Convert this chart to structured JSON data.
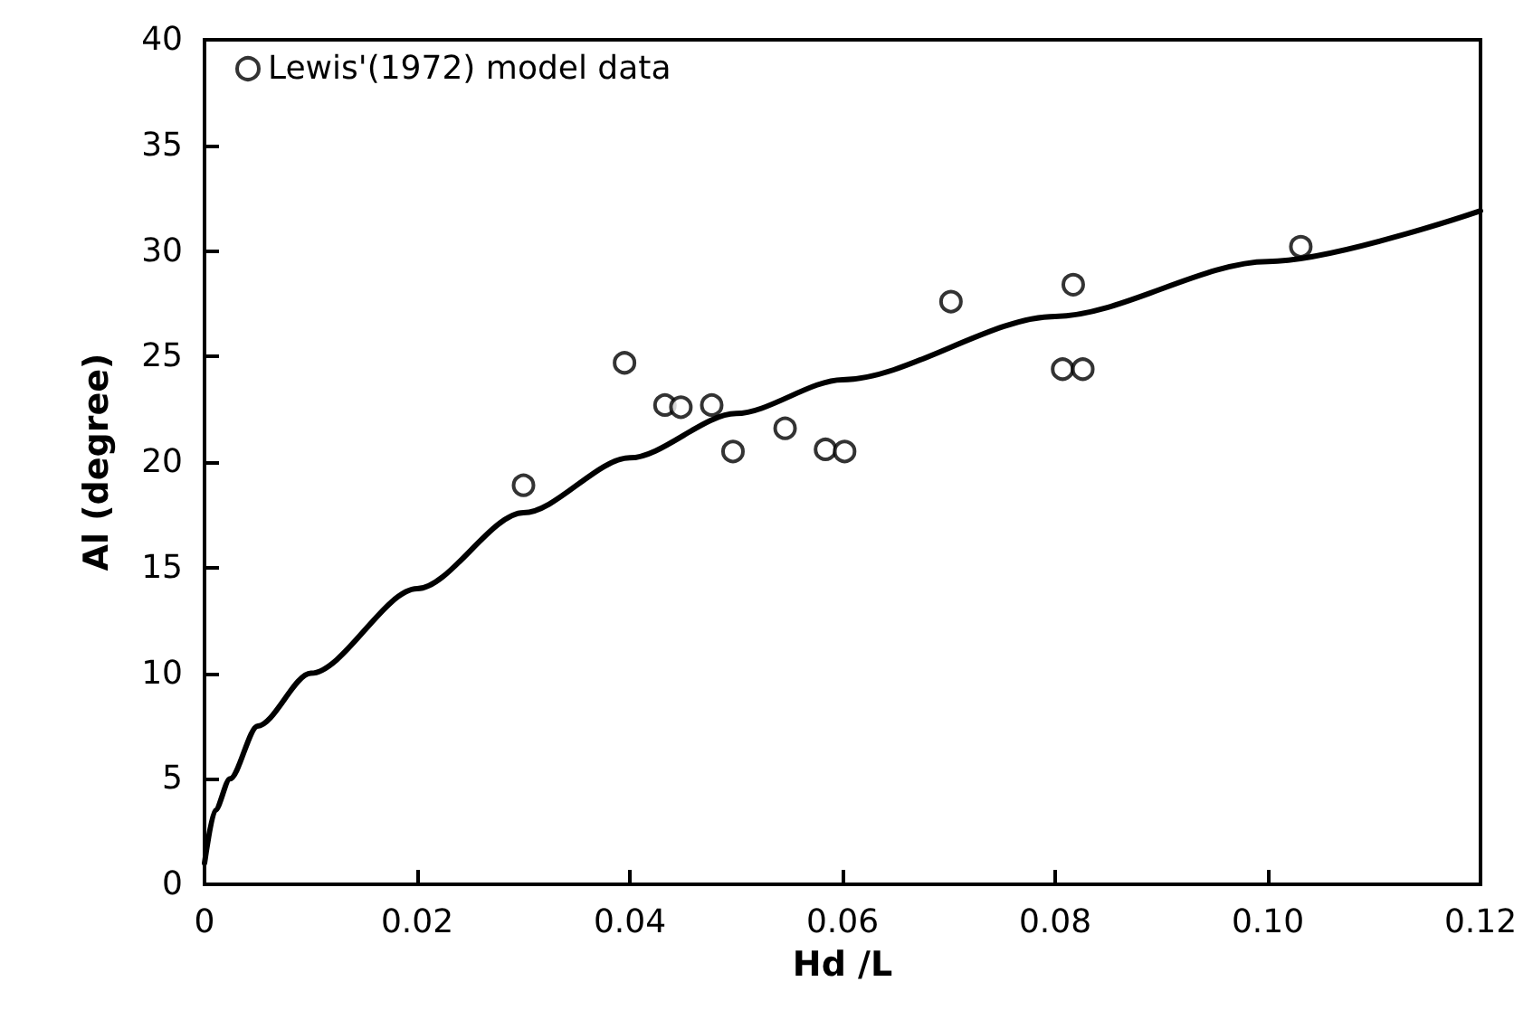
{
  "chart_data": {
    "type": "scatter",
    "xlabel": "Hd /L",
    "ylabel": "Al (degree)",
    "xlim": [
      0,
      0.12
    ],
    "ylim": [
      0,
      40
    ],
    "xticks": [
      0,
      0.02,
      0.04,
      0.06,
      0.08,
      {
        "value": 0.1,
        "label": "0.10"
      },
      0.12
    ],
    "yticks": [
      0,
      5,
      10,
      15,
      20,
      25,
      30,
      35,
      40
    ],
    "grid": false,
    "legend": "top left",
    "series": [
      {
        "name": "Lewis'(1972) model data",
        "marker": "circle",
        "color": "#000000",
        "x": [
          0.03,
          0.0395,
          0.0433,
          0.0448,
          0.0477,
          0.0497,
          0.0546,
          0.0584,
          0.0602,
          0.0702,
          0.0817,
          0.0807,
          0.0826,
          0.1031
        ],
        "values": [
          18.9,
          24.7,
          22.7,
          22.6,
          22.7,
          20.5,
          21.6,
          20.6,
          20.5,
          27.6,
          28.4,
          24.4,
          24.4,
          30.2
        ]
      },
      {
        "type": "line",
        "marker": "none",
        "line_style": "solid",
        "color": "#000000",
        "x": [
          0,
          0.001,
          0.0024,
          0.005,
          0.01,
          0.02,
          0.03,
          0.04,
          0.05,
          0.06,
          0.08,
          0.1,
          0.12
        ],
        "values": [
          1,
          3.5,
          5,
          7.5,
          10,
          14,
          17.6,
          20.2,
          22.3,
          23.9,
          26.9,
          29.5,
          31.9
        ]
      }
    ]
  }
}
